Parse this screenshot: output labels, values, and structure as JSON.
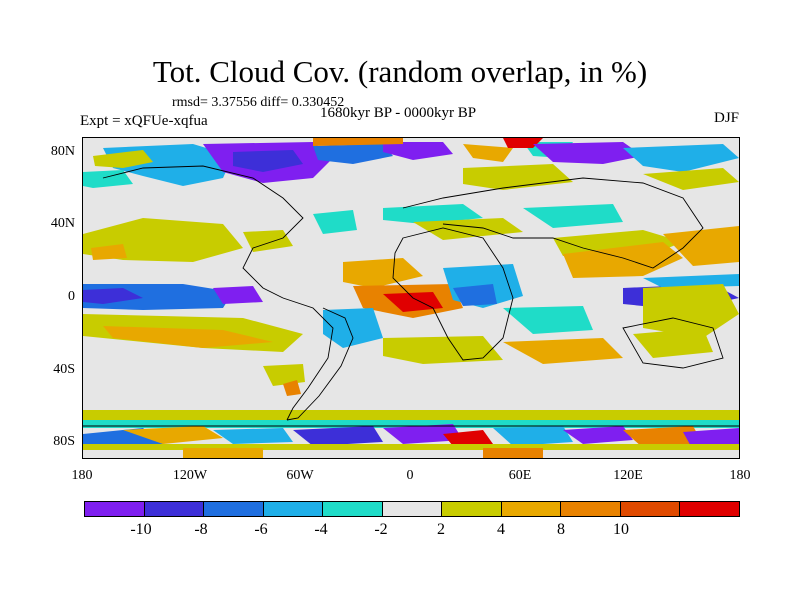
{
  "figure": {
    "title": "Tot. Cloud Cov. (random overlap, in %)",
    "stats": "rmsd= 3.37556 diff= 0.330452",
    "period": "1680kyr BP - 0000kyr BP",
    "experiment": "Expt = xQFUe-xqfua",
    "season": "DJF"
  },
  "axes": {
    "y_ticks": [
      "80N",
      "40N",
      "0",
      "40S",
      "80S"
    ],
    "x_ticks": [
      "180",
      "120W",
      "60W",
      "0",
      "60E",
      "120E",
      "180"
    ]
  },
  "colorbar": {
    "colors": [
      "#7f1ff0",
      "#3d2fd8",
      "#1f6fe0",
      "#1fafe8",
      "#1fdcc8",
      "#e6e6e6",
      "#c8cc00",
      "#e8a800",
      "#e88200",
      "#e04a00",
      "#e00000"
    ],
    "labels": [
      "-10",
      "-8",
      "-6",
      "-4",
      "-2",
      "2",
      "4",
      "8",
      "10"
    ]
  }
}
